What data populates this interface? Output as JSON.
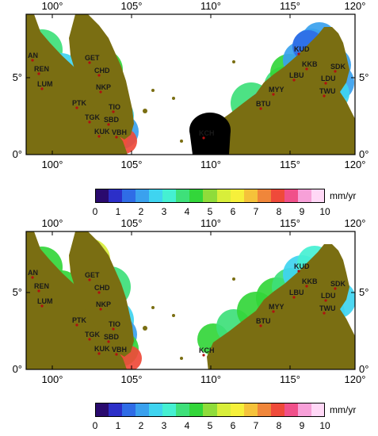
{
  "map_panels": [
    {
      "name": "top",
      "lon_ticks": [
        "100°",
        "105°",
        "110°",
        "115°",
        "120°"
      ],
      "lat_ticks": [
        "0°",
        "5°"
      ],
      "stations": [
        {
          "code": "AN"
        },
        {
          "code": "GET"
        },
        {
          "code": "REN"
        },
        {
          "code": "CHD"
        },
        {
          "code": "LUM"
        },
        {
          "code": "NKP"
        },
        {
          "code": "PTK"
        },
        {
          "code": "TIO"
        },
        {
          "code": "TGK"
        },
        {
          "code": "SBD"
        },
        {
          "code": "KUK"
        },
        {
          "code": "VBH"
        },
        {
          "code": "KUD"
        },
        {
          "code": "KKB"
        },
        {
          "code": "SDK"
        },
        {
          "code": "LBU"
        },
        {
          "code": "LDU"
        },
        {
          "code": "MYY"
        },
        {
          "code": "TWU"
        },
        {
          "code": "BTU"
        },
        {
          "code": "KCH"
        }
      ]
    },
    {
      "name": "bottom",
      "lon_ticks": [
        "100°",
        "105°",
        "110°",
        "115°",
        "120°"
      ],
      "lat_ticks": [
        "0°",
        "5°"
      ],
      "stations": [
        {
          "code": "AN"
        },
        {
          "code": "GET"
        },
        {
          "code": "REN"
        },
        {
          "code": "CHD"
        },
        {
          "code": "LUM"
        },
        {
          "code": "NKP"
        },
        {
          "code": "PTK"
        },
        {
          "code": "TIO"
        },
        {
          "code": "TGK"
        },
        {
          "code": "SBD"
        },
        {
          "code": "KUK"
        },
        {
          "code": "VBH"
        },
        {
          "code": "KUD"
        },
        {
          "code": "KKB"
        },
        {
          "code": "SDK"
        },
        {
          "code": "LBU"
        },
        {
          "code": "LDU"
        },
        {
          "code": "MYY"
        },
        {
          "code": "TWU"
        },
        {
          "code": "BTU"
        },
        {
          "code": "KCH"
        }
      ]
    }
  ],
  "colorbar": {
    "unit": "mm/yr",
    "labels": [
      "0",
      "1",
      "2",
      "3",
      "4",
      "5",
      "6",
      "7",
      "8",
      "9",
      "10"
    ],
    "colors": [
      "#2a0a6e",
      "#2c2fc8",
      "#2f6ce6",
      "#3aa1ee",
      "#3fd4f0",
      "#45f0d2",
      "#3ee07a",
      "#33d63a",
      "#8fdc3a",
      "#d8ee3a",
      "#f6f03a",
      "#f5c23a",
      "#f0863a",
      "#ef4a3a",
      "#f0508a",
      "#f7a0d8",
      "#ffd8f6"
    ]
  },
  "colors": {
    "land": "#7a6e12",
    "water": "#ffffff"
  }
}
